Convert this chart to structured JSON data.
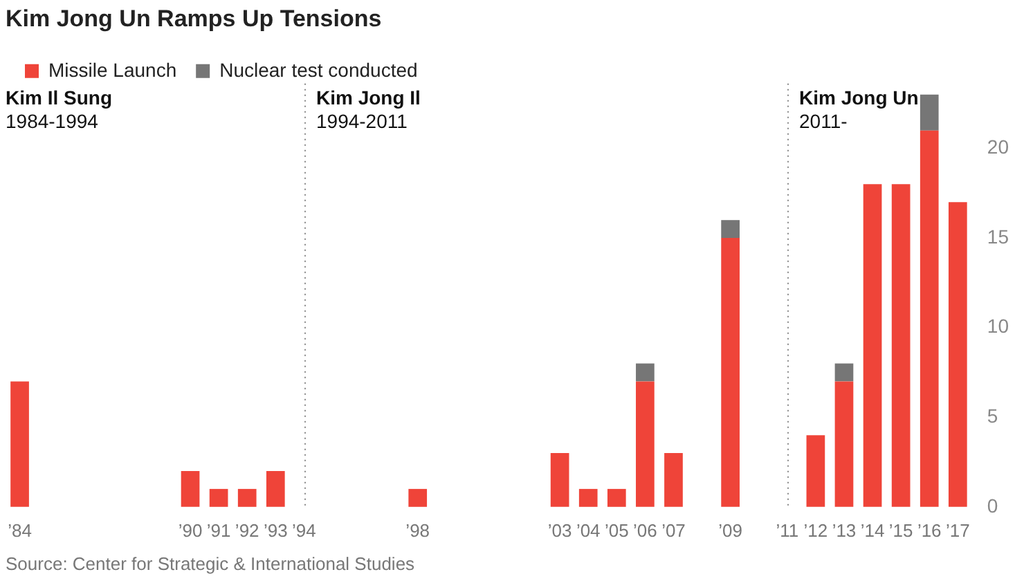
{
  "chart_data": {
    "type": "bar",
    "title": "Kim Jong Un Ramps Up Tensions",
    "stacked": true,
    "legend": "top left",
    "grid": false,
    "categories": [
      "’84",
      null,
      null,
      null,
      null,
      null,
      "’90",
      "’91",
      "’92",
      "’93",
      "’94",
      null,
      null,
      null,
      "’98",
      null,
      null,
      null,
      null,
      "’03",
      "’04",
      "’05",
      "’06",
      "’07",
      null,
      "’09",
      null,
      "’11",
      "’12",
      "’13",
      "’14",
      "’15",
      "’16",
      "’17"
    ],
    "series": [
      {
        "name": "Missile Launch",
        "color": "#ef4439",
        "values": [
          7,
          0,
          0,
          0,
          0,
          0,
          2,
          1,
          1,
          2,
          0,
          0,
          0,
          0,
          1,
          0,
          0,
          0,
          0,
          3,
          1,
          1,
          7,
          3,
          0,
          15,
          0,
          0,
          4,
          7,
          18,
          18,
          21,
          17
        ]
      },
      {
        "name": "Nuclear test conducted",
        "color": "#767676",
        "values": [
          0,
          0,
          0,
          0,
          0,
          0,
          0,
          0,
          0,
          0,
          0,
          0,
          0,
          0,
          0,
          0,
          0,
          0,
          0,
          0,
          0,
          0,
          1,
          0,
          0,
          1,
          0,
          0,
          0,
          1,
          0,
          0,
          2,
          0
        ]
      }
    ],
    "ylim": [
      0,
      23
    ],
    "yticks": [
      0,
      5,
      10,
      15,
      20
    ],
    "ref_lines": [
      {
        "axis": "x",
        "value": "’94",
        "line_style": "dotted",
        "color": "#888888",
        "label": "Kim Jong Il\n1994-2011"
      },
      {
        "axis": "x",
        "value": "’11",
        "line_style": "dotted",
        "color": "#888888",
        "label": "Kim Jong Un\n2011-"
      }
    ],
    "annotations": [
      "Kim Il Sung\n1984-1994",
      "Source: Center for Strategic & International Studies"
    ]
  }
}
